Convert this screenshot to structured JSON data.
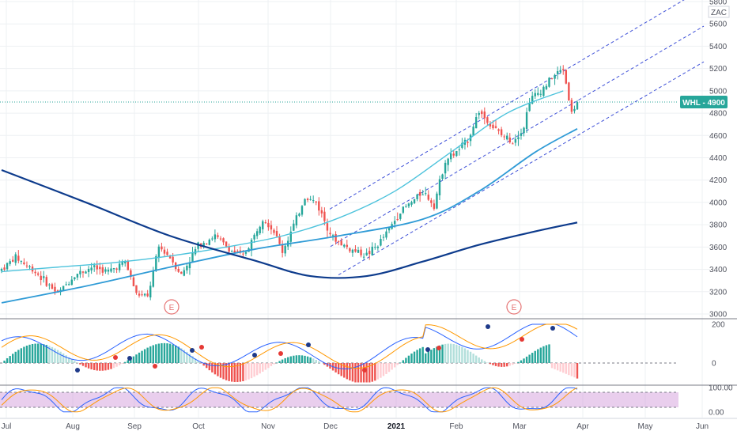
{
  "header": {
    "currency": "ZAC"
  },
  "price_tag": {
    "text": "WHL - 4900",
    "color": "#26a69a"
  },
  "colors": {
    "up": "#26a69a",
    "down": "#ef5350",
    "ema_fast": "#4dc3dc",
    "ema_slow": "#2f9bd6",
    "sma_long": "#0d3b8c",
    "channel": "#3f51d8",
    "earnings": "#e57373",
    "stoch_k": "#2962ff",
    "stoch_d": "#ff9800",
    "stoch_band": "#ce93d8"
  },
  "icons": {
    "earnings_marker": "earnings-icon"
  },
  "chart_data": [
    {
      "type": "candlestick",
      "series": [
        {
          "name": "WHL",
          "kind": "candles",
          "last": 4900
        },
        {
          "kind": "line",
          "role": "ema_fast",
          "x": [
            0,
            20,
            40,
            60,
            80,
            100,
            120,
            140,
            160,
            180,
            200
          ],
          "y": [
            3380,
            3420,
            3460,
            3520,
            3600,
            3700,
            3860,
            4100,
            4450,
            4800,
            5000
          ]
        },
        {
          "kind": "line",
          "role": "ema_slow",
          "x": [
            0,
            30,
            60,
            90,
            120,
            150,
            170,
            190,
            205
          ],
          "y": [
            3100,
            3250,
            3420,
            3580,
            3700,
            3850,
            4100,
            4450,
            4660
          ]
        },
        {
          "kind": "line",
          "role": "sma_long",
          "x": [
            0,
            30,
            60,
            90,
            110,
            130,
            150,
            170,
            190,
            205
          ],
          "y": [
            4290,
            4000,
            3700,
            3480,
            3340,
            3340,
            3470,
            3620,
            3740,
            3820
          ]
        }
      ],
      "x_ticks": [
        "Jul",
        "Aug",
        "Sep",
        "Oct",
        "Nov",
        "Dec",
        "2021",
        "Feb",
        "Mar",
        "Apr",
        "May",
        "Jun"
      ],
      "y_ticks": [
        3000,
        3200,
        3400,
        3600,
        3800,
        4000,
        4200,
        4400,
        4600,
        4800,
        5000,
        5200,
        5400,
        5600,
        5800
      ],
      "ylim": [
        2980,
        5830
      ],
      "annotations": [
        {
          "label": "E"
        },
        {
          "label": "E"
        }
      ],
      "grid": true
    },
    {
      "type": "bar",
      "y_ticks": [
        "200",
        "0"
      ],
      "ylim": [
        -120,
        230
      ]
    },
    {
      "type": "line",
      "y_ticks": [
        "100.00",
        "0.00"
      ],
      "ylim": [
        -5,
        105
      ],
      "band": [
        20,
        80
      ]
    }
  ]
}
